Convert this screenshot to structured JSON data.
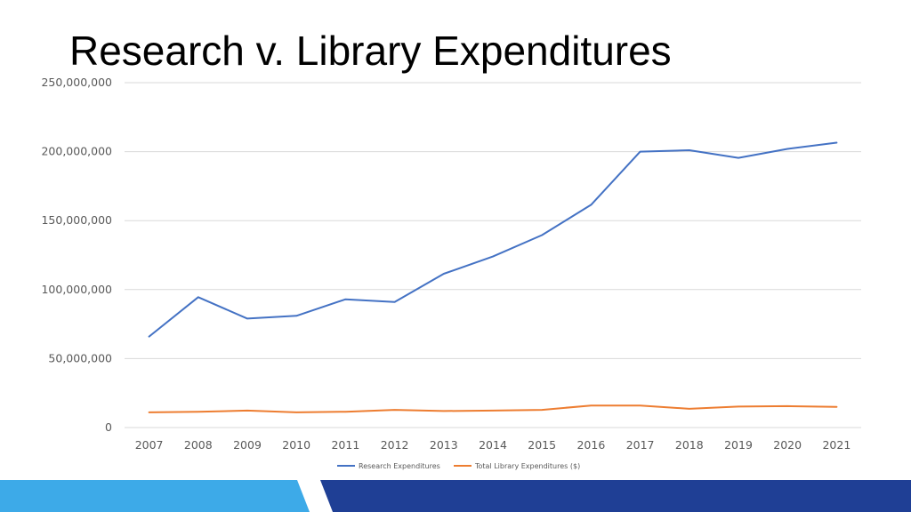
{
  "slide": {
    "title": "Research v. Library Expenditures"
  },
  "chart_data": {
    "type": "line",
    "title": "",
    "xlabel": "",
    "ylabel": "",
    "categories": [
      "2007",
      "2008",
      "2009",
      "2010",
      "2011",
      "2012",
      "2013",
      "2014",
      "2015",
      "2016",
      "2017",
      "2018",
      "2019",
      "2020",
      "2021"
    ],
    "ylim": [
      0,
      250000000
    ],
    "y_ticks": [
      0,
      50000000,
      100000000,
      150000000,
      200000000,
      250000000
    ],
    "y_tick_labels": [
      "0",
      "50,000,000",
      "100,000,000",
      "150,000,000",
      "200,000,000",
      "250,000,000"
    ],
    "grid": true,
    "legend_position": "bottom",
    "series": [
      {
        "name": "Research Expenditures",
        "color": "#4472c4",
        "values": [
          66000000,
          94500000,
          79000000,
          81000000,
          93000000,
          91000000,
          111500000,
          124000000,
          139500000,
          161500000,
          200000000,
          201000000,
          195500000,
          202000000,
          206500000
        ]
      },
      {
        "name": "Total Library Expenditures ($)",
        "color": "#ed7d31",
        "values": [
          11000000,
          11500000,
          12300000,
          11000000,
          11500000,
          12800000,
          12000000,
          12300000,
          12800000,
          16000000,
          16000000,
          13600000,
          15200000,
          15500000,
          15000000
        ]
      }
    ]
  }
}
